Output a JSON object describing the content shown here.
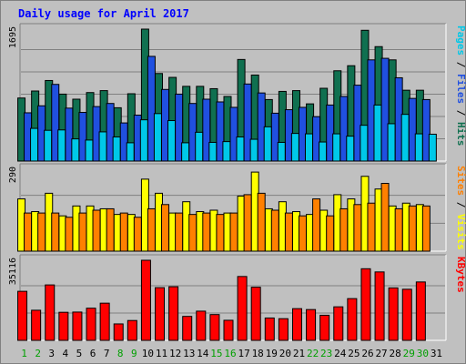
{
  "chart_data": {
    "type": "bar",
    "title": "Daily usage for April 2017",
    "days": [
      "1",
      "2",
      "3",
      "4",
      "5",
      "6",
      "7",
      "8",
      "9",
      "10",
      "11",
      "12",
      "13",
      "14",
      "15",
      "16",
      "17",
      "18",
      "19",
      "20",
      "21",
      "22",
      "23",
      "24",
      "25",
      "26",
      "27",
      "28",
      "29",
      "30",
      "31"
    ],
    "weekend_days": [
      "1",
      "2",
      "8",
      "9",
      "15",
      "16",
      "22",
      "23",
      "29",
      "30"
    ],
    "panels": [
      {
        "id": "pfh",
        "ytick": "1695",
        "ymax": 1695,
        "legend": [
          {
            "text": "Pages",
            "color": "#00c8e8"
          },
          {
            "text": " / ",
            "color": "#000000"
          },
          {
            "text": "Files",
            "color": "#2050e0"
          },
          {
            "text": " / ",
            "color": "#000000"
          },
          {
            "text": "Hits",
            "color": "#107050"
          }
        ],
        "series": [
          {
            "name": "Hits",
            "color": "#107050",
            "values": [
              810,
              900,
              1035,
              860,
              795,
              880,
              905,
              685,
              865,
              1695,
              1125,
              1075,
              960,
              960,
              930,
              830,
              1305,
              1105,
              790,
              895,
              905,
              735,
              935,
              1160,
              1225,
              1680,
              1470,
              1300,
              910,
              910,
              0
            ]
          },
          {
            "name": "Files",
            "color": "#2050e0",
            "values": [
              620,
              710,
              985,
              680,
              625,
              700,
              740,
              490,
              590,
              1345,
              920,
              860,
              740,
              795,
              760,
              690,
              990,
              875,
              615,
              660,
              690,
              570,
              720,
              830,
              975,
              1300,
              1320,
              1070,
              805,
              790,
              0
            ]
          },
          {
            "name": "Pages",
            "color": "#00c8e8",
            "values": [
              420,
              395,
              400,
              285,
              270,
              375,
              310,
              235,
              530,
              610,
              520,
              235,
              370,
              240,
              250,
              310,
              280,
              440,
              240,
              355,
              350,
              245,
              350,
              320,
              460,
              720,
              480,
              600,
              350,
              345,
              0
            ]
          }
        ]
      },
      {
        "id": "sv",
        "ytick": "290",
        "ymax": 290,
        "legend": [
          {
            "text": "Sites",
            "color": "#ff8000"
          },
          {
            "text": " / ",
            "color": "#000000"
          },
          {
            "text": "Visits",
            "color": "#ffff00"
          }
        ],
        "series": [
          {
            "name": "Visits",
            "color": "#ffff00",
            "values": [
              185,
              140,
              205,
              125,
              160,
              160,
              150,
              130,
              130,
              255,
              205,
              135,
              175,
              140,
              145,
              135,
              195,
              280,
              150,
              175,
              140,
              130,
              145,
              200,
              185,
              265,
              220,
              160,
              170,
              165,
              0
            ]
          },
          {
            "name": "Sites",
            "color": "#ff8000",
            "values": [
              135,
              135,
              135,
              120,
              135,
              145,
              150,
              135,
              120,
              150,
              165,
              135,
              130,
              135,
              130,
              135,
              200,
              205,
              145,
              135,
              125,
              185,
              125,
              150,
              165,
              170,
              240,
              150,
              160,
              160,
              0
            ]
          }
        ]
      },
      {
        "id": "kb",
        "ytick": "35116",
        "ymax": 35116,
        "legend": [
          {
            "text": "KBytes",
            "color": "#ff0000"
          }
        ],
        "series": [
          {
            "name": "KBytes",
            "color": "#ff0000",
            "values": [
              21500,
              13200,
              24300,
              12300,
              12400,
              14100,
              16300,
              7200,
              8700,
              35116,
              23100,
              23500,
              10500,
              12800,
              11300,
              8800,
              28000,
              23300,
              9800,
              9500,
              13900,
              13500,
              11000,
              14700,
              18300,
              31400,
              30000,
              23000,
              22400,
              25600,
              0
            ]
          }
        ]
      }
    ]
  }
}
